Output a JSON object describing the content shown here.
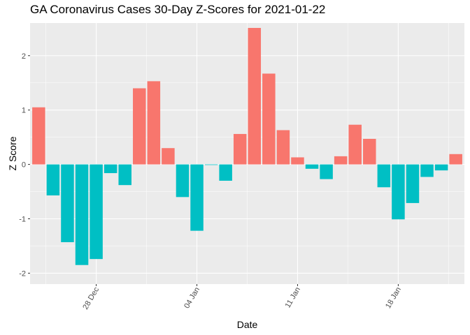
{
  "chart_data": {
    "type": "bar",
    "title": "GA Coronavirus Cases 30-Day Z-Scores for 2021-01-22",
    "xlabel": "Date",
    "ylabel": "Z Score",
    "ylim": [
      -2.2,
      2.6
    ],
    "y_ticks": [
      -2,
      -1,
      0,
      1,
      2
    ],
    "x_ticks": [
      {
        "label": "28 Dec",
        "day": 4
      },
      {
        "label": "04 Jan",
        "day": 11
      },
      {
        "label": "11 Jan",
        "day": 18
      },
      {
        "label": "18 Jan",
        "day": 25
      }
    ],
    "dates": [
      "2020-12-24",
      "2020-12-25",
      "2020-12-26",
      "2020-12-27",
      "2020-12-28",
      "2020-12-29",
      "2020-12-30",
      "2020-12-31",
      "2021-01-01",
      "2021-01-02",
      "2021-01-03",
      "2021-01-04",
      "2021-01-05",
      "2021-01-06",
      "2021-01-07",
      "2021-01-08",
      "2021-01-09",
      "2021-01-10",
      "2021-01-11",
      "2021-01-12",
      "2021-01-13",
      "2021-01-14",
      "2021-01-15",
      "2021-01-16",
      "2021-01-17",
      "2021-01-18",
      "2021-01-19",
      "2021-01-20",
      "2021-01-21",
      "2021-01-22"
    ],
    "values": [
      1.05,
      -0.57,
      -1.43,
      -1.85,
      -1.74,
      -0.16,
      -0.38,
      1.4,
      1.53,
      0.3,
      -0.6,
      -1.22,
      -0.01,
      -0.3,
      0.56,
      2.51,
      1.67,
      0.63,
      0.13,
      -0.08,
      -0.27,
      0.15,
      0.73,
      0.47,
      -0.42,
      -1.01,
      -0.71,
      -0.23,
      -0.11,
      0.19
    ],
    "positive_color": "#F8766D",
    "negative_color": "#00BFC4",
    "panel_color": "#EBEBEB",
    "grid_color": "#FFFFFF"
  }
}
